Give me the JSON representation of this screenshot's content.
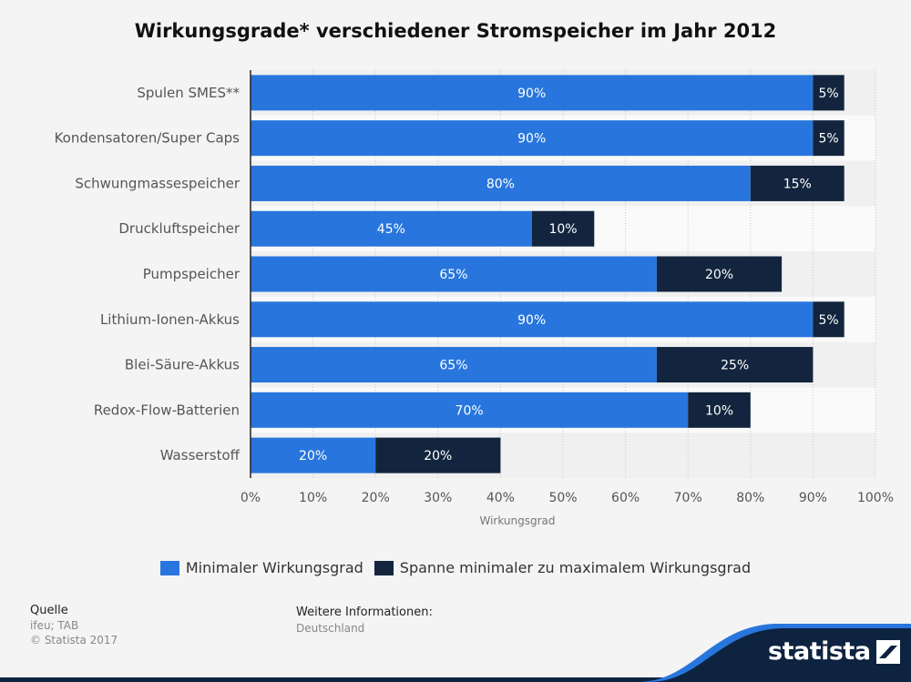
{
  "chart_data": {
    "type": "bar",
    "orientation": "horizontal",
    "stacked": true,
    "title": "Wirkungsgrade* verschiedener Stromspeicher im Jahr 2012",
    "xlabel": "Wirkungsgrad",
    "ylabel": "",
    "xlim": [
      0,
      100
    ],
    "ticks": [
      "0%",
      "10%",
      "20%",
      "30%",
      "40%",
      "50%",
      "60%",
      "70%",
      "80%",
      "90%",
      "100%"
    ],
    "grid": true,
    "legend_position": "bottom",
    "categories": [
      "Spulen SMES**",
      "Kondensatoren/Super Caps",
      "Schwungmassespeicher",
      "Druckluftspeicher",
      "Pumpspeicher",
      "Lithium-Ionen-Akkus",
      "Blei-Säure-Akkus",
      "Redox-Flow-Batterien",
      "Wasserstoff"
    ],
    "series": [
      {
        "name": "Minimaler Wirkungsgrad",
        "color": "#2876dd",
        "values": [
          90,
          90,
          80,
          45,
          65,
          90,
          65,
          70,
          20
        ],
        "labels": [
          "90%",
          "90%",
          "80%",
          "45%",
          "65%",
          "90%",
          "65%",
          "70%",
          "20%"
        ]
      },
      {
        "name": "Spanne minimaler zu maximalem Wirkungsgrad",
        "color": "#13253e",
        "values": [
          5,
          5,
          15,
          10,
          20,
          5,
          25,
          10,
          20
        ],
        "labels": [
          "5%",
          "5%",
          "15%",
          "10%",
          "20%",
          "5%",
          "25%",
          "10%",
          "20%"
        ]
      }
    ]
  },
  "source": {
    "title": "Quelle",
    "lines": [
      "ifeu; TAB",
      "© Statista 2017"
    ]
  },
  "info": {
    "title": "Weitere Informationen:",
    "value": "Deutschland"
  },
  "brand": {
    "name": "statista",
    "icon": "statista-logo-icon",
    "color": "#0d2340"
  }
}
